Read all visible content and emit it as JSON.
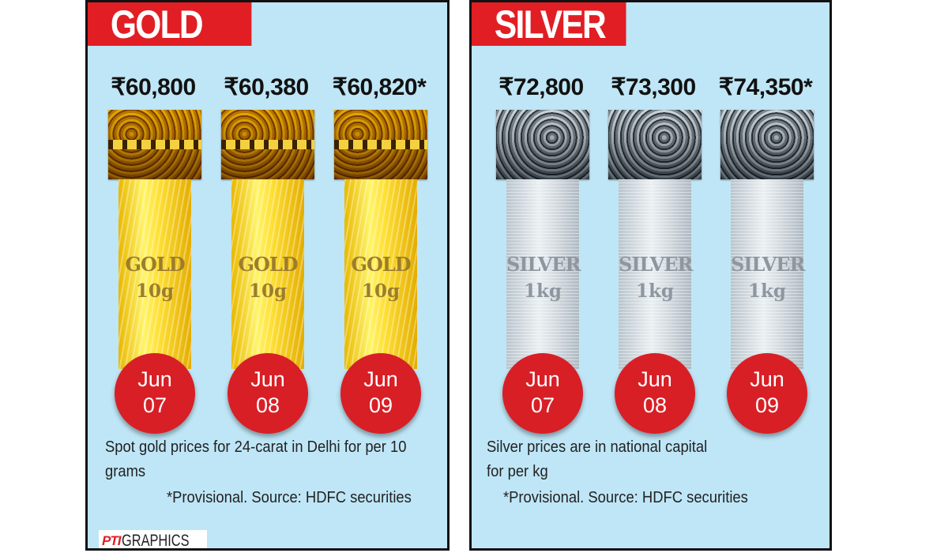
{
  "gold": {
    "title": "GOLD",
    "items": [
      {
        "price": "₹60,800",
        "metal": "GOLD",
        "weight": "10g",
        "month": "Jun",
        "day": "07"
      },
      {
        "price": "₹60,380",
        "metal": "GOLD",
        "weight": "10g",
        "month": "Jun",
        "day": "08"
      },
      {
        "price": "₹60,820*",
        "metal": "GOLD",
        "weight": "10g",
        "month": "Jun",
        "day": "09"
      }
    ],
    "note": "Spot gold prices for 24-carat in Delhi for per 10 grams",
    "source": "*Provisional.  Source: HDFC securities"
  },
  "silver": {
    "title": "SILVER",
    "items": [
      {
        "price": "₹72,800",
        "metal": "SILVER",
        "weight": "1kg",
        "month": "Jun",
        "day": "07"
      },
      {
        "price": "₹73,300",
        "metal": "SILVER",
        "weight": "1kg",
        "month": "Jun",
        "day": "08"
      },
      {
        "price": "₹74,350*",
        "metal": "SILVER",
        "weight": "1kg",
        "month": "Jun",
        "day": "09"
      }
    ],
    "note": "Silver prices are in national capital for per kg",
    "source": "*Provisional.  Source: HDFC securities"
  },
  "credit": {
    "logo": "PTI",
    "text": "GRAPHICS"
  },
  "colors": {
    "panel_bg": "#bfe6f6",
    "tag_red": "#e11e24",
    "date_red": "#d81f26",
    "gold": "#f2c500",
    "silver": "#cdd6dc"
  }
}
